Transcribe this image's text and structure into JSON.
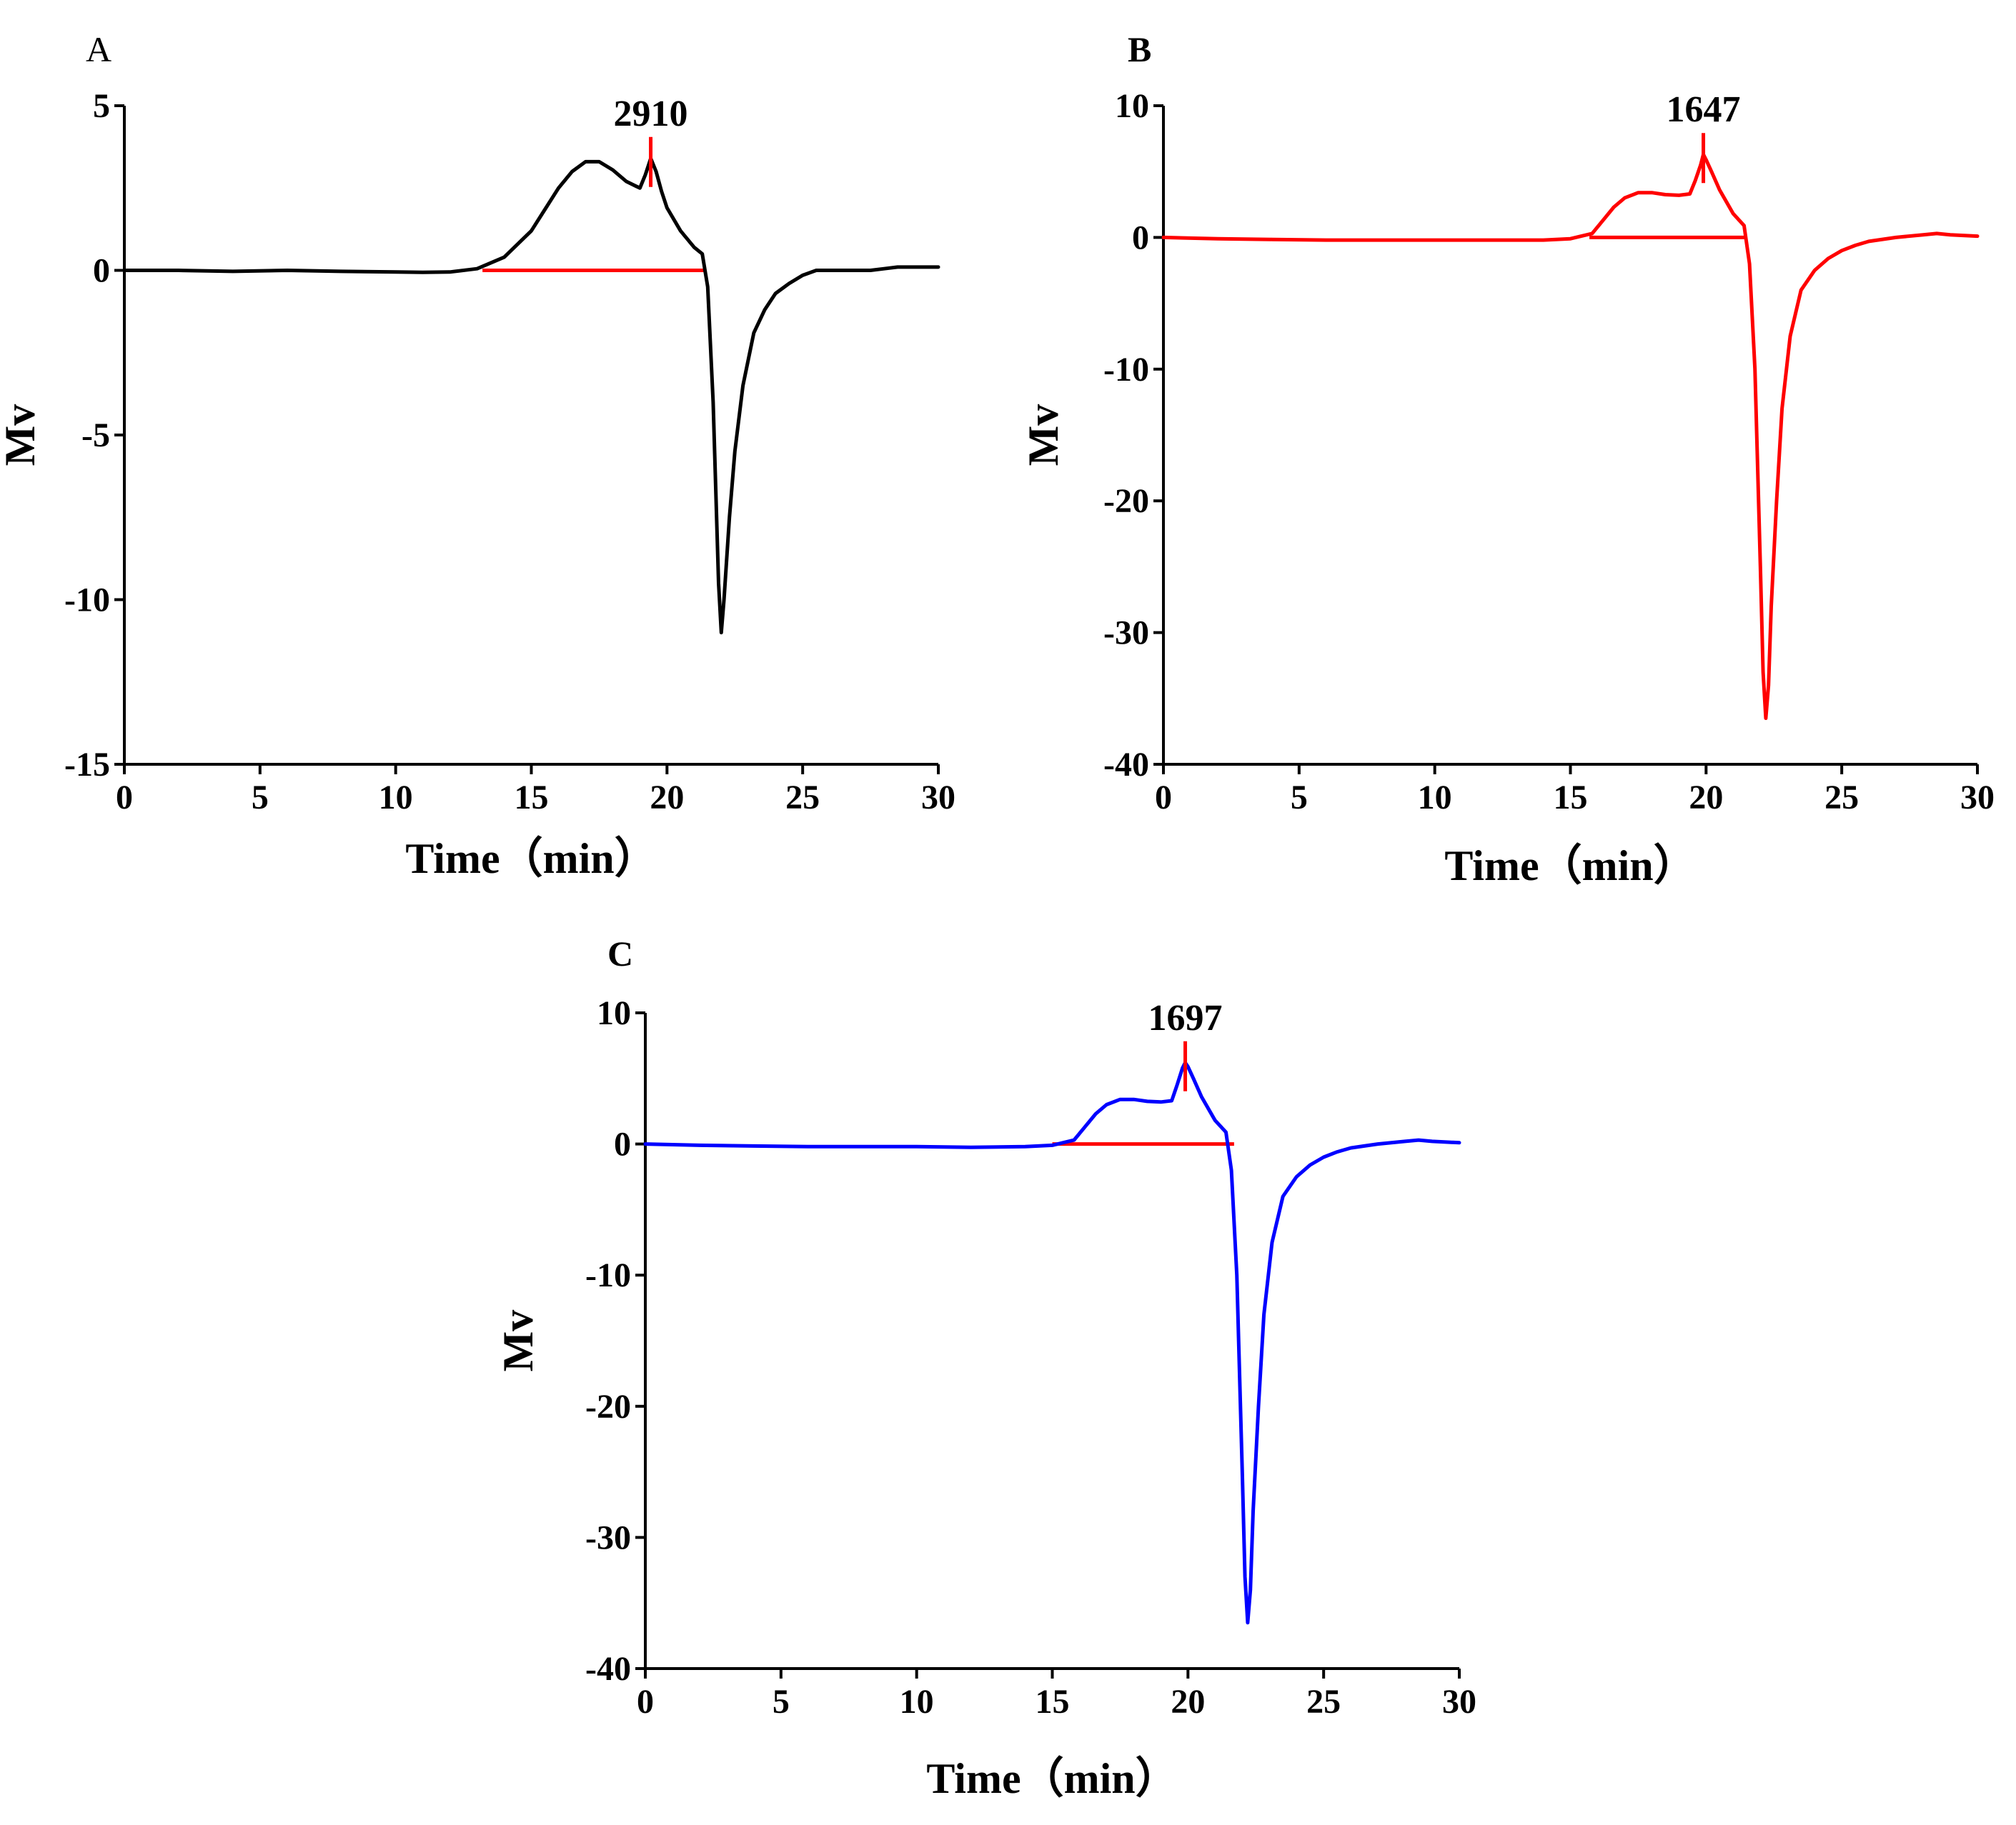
{
  "chart_data": [
    {
      "panel": "A",
      "type": "line",
      "xlabel": "Time（min）",
      "ylabel": "Mv",
      "xlim": [
        0,
        30
      ],
      "ylim": [
        -15,
        5
      ],
      "xticks": [
        0,
        5,
        10,
        15,
        20,
        25,
        30
      ],
      "yticks": [
        5,
        0,
        -5,
        -10,
        -15
      ],
      "line_color": "#000000",
      "peak_label": "2910",
      "peak_marker_x": 19.4,
      "integration_baseline": [
        13.2,
        21.4
      ],
      "x": [
        0,
        2,
        4,
        6,
        8,
        10,
        11,
        12,
        13,
        14,
        15,
        16,
        16.5,
        17,
        17.5,
        18,
        18.5,
        19,
        19.2,
        19.4,
        19.6,
        19.8,
        20,
        20.5,
        21,
        21.3,
        21.5,
        21.7,
        21.9,
        22,
        22.1,
        22.3,
        22.5,
        22.8,
        23.2,
        23.6,
        24,
        24.5,
        25,
        25.5,
        26,
        27,
        27.5,
        28,
        28.5,
        29,
        30
      ],
      "y": [
        0,
        0,
        -0.03,
        0,
        -0.03,
        -0.05,
        -0.06,
        -0.05,
        0.05,
        0.4,
        1.2,
        2.5,
        3.0,
        3.3,
        3.3,
        3.05,
        2.7,
        2.5,
        2.9,
        3.4,
        3.0,
        2.4,
        1.9,
        1.2,
        0.7,
        0.5,
        -0.5,
        -4.0,
        -9.5,
        -11.0,
        -10.0,
        -7.5,
        -5.5,
        -3.5,
        -1.9,
        -1.2,
        -0.7,
        -0.4,
        -0.15,
        0,
        0,
        0,
        0,
        0.05,
        0.1,
        0.1,
        0.1
      ]
    },
    {
      "panel": "B",
      "type": "line",
      "xlabel": "Time（min）",
      "ylabel": "Mv",
      "xlim": [
        0,
        30
      ],
      "ylim": [
        -40,
        10
      ],
      "xticks": [
        0,
        5,
        10,
        15,
        20,
        25,
        30
      ],
      "yticks": [
        10,
        0,
        -10,
        -20,
        -30,
        -40
      ],
      "line_color": "#ff0000",
      "peak_label": "1647",
      "peak_marker_x": 19.9,
      "integration_baseline": [
        15.7,
        21.5
      ],
      "x": [
        0,
        2,
        4,
        6,
        8,
        10,
        12,
        14,
        15,
        15.8,
        16.2,
        16.6,
        17,
        17.5,
        18,
        18.5,
        19,
        19.4,
        19.6,
        19.8,
        19.9,
        20,
        20.2,
        20.5,
        21,
        21.4,
        21.6,
        21.8,
        22,
        22.1,
        22.2,
        22.3,
        22.4,
        22.6,
        22.8,
        23.1,
        23.5,
        24,
        24.5,
        25,
        25.5,
        26,
        27,
        28,
        28.5,
        29,
        30
      ],
      "y": [
        0,
        -0.1,
        -0.15,
        -0.2,
        -0.2,
        -0.2,
        -0.2,
        -0.2,
        -0.1,
        0.3,
        1.3,
        2.3,
        3.0,
        3.4,
        3.4,
        3.25,
        3.2,
        3.3,
        4.3,
        5.5,
        6.3,
        5.9,
        5.0,
        3.6,
        1.8,
        0.9,
        -2.0,
        -10.0,
        -25.0,
        -33.0,
        -36.5,
        -34.0,
        -28.0,
        -20.0,
        -13.0,
        -7.5,
        -4.0,
        -2.5,
        -1.6,
        -1.0,
        -0.6,
        -0.3,
        0,
        0.2,
        0.3,
        0.2,
        0.1
      ]
    },
    {
      "panel": "C",
      "type": "line",
      "xlabel": "Time（min）",
      "ylabel": "Mv",
      "xlim": [
        0,
        30
      ],
      "ylim": [
        -40,
        10
      ],
      "xticks": [
        0,
        5,
        10,
        15,
        20,
        25,
        30
      ],
      "yticks": [
        10,
        0,
        -10,
        -20,
        -30,
        -40
      ],
      "line_color": "#0000ff",
      "peak_label": "1697",
      "peak_marker_x": 19.9,
      "integration_baseline": [
        15.0,
        21.7
      ],
      "x": [
        0,
        2,
        4,
        6,
        8,
        10,
        12,
        14,
        15,
        15.8,
        16.2,
        16.6,
        17,
        17.5,
        18,
        18.5,
        19,
        19.4,
        19.6,
        19.8,
        19.9,
        20,
        20.2,
        20.5,
        21,
        21.4,
        21.6,
        21.8,
        22,
        22.1,
        22.2,
        22.3,
        22.4,
        22.6,
        22.8,
        23.1,
        23.5,
        24,
        24.5,
        25,
        25.5,
        26,
        27,
        28,
        28.5,
        29,
        30
      ],
      "y": [
        0,
        -0.1,
        -0.15,
        -0.2,
        -0.2,
        -0.2,
        -0.25,
        -0.2,
        -0.1,
        0.3,
        1.3,
        2.3,
        3.0,
        3.4,
        3.4,
        3.25,
        3.2,
        3.3,
        4.5,
        5.8,
        6.2,
        5.9,
        5.0,
        3.6,
        1.8,
        0.9,
        -2.0,
        -10.0,
        -25.0,
        -33.0,
        -36.5,
        -34.0,
        -28.0,
        -20.0,
        -13.0,
        -7.5,
        -4.0,
        -2.5,
        -1.6,
        -1.0,
        -0.6,
        -0.3,
        0,
        0.2,
        0.3,
        0.2,
        0.1
      ]
    }
  ]
}
